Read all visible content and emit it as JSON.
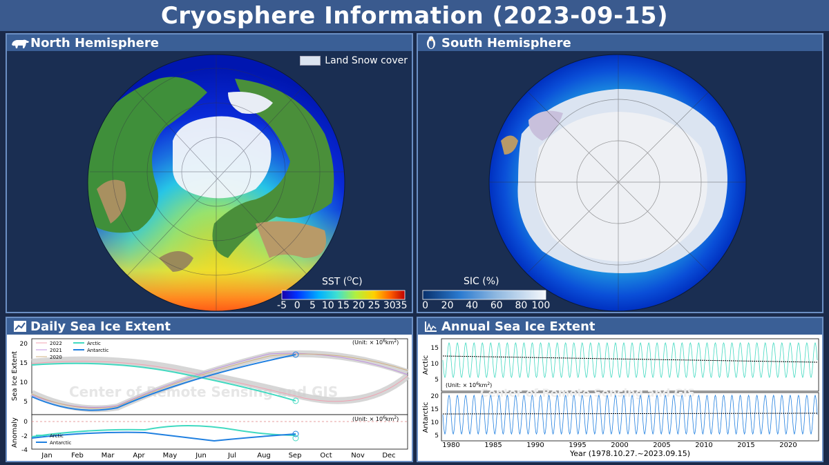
{
  "title": "Cryosphere Information (2023-09-15)",
  "panels": {
    "north": {
      "title": "North Hemisphere",
      "icon": "polar-bear-icon",
      "legend": "Land Snow cover",
      "cbar_label": "SST (",
      "cbar_label_sup": "O",
      "cbar_label_end": "C)",
      "cbar_ticks": [
        "-5",
        "0",
        "5",
        "10",
        "15",
        "20",
        "25",
        "30",
        "35"
      ]
    },
    "south": {
      "title": "South Hemisphere",
      "icon": "penguin-icon",
      "cbar_label": "SIC (%)",
      "cbar_ticks": [
        "0",
        "20",
        "40",
        "60",
        "80",
        "100"
      ]
    },
    "daily": {
      "title": "Daily Sea Ice Extent",
      "icon": "line-chart-icon",
      "watermark": "Center of Remote Sensing and GIS",
      "unit_text": "(Unit: × 10",
      "unit_sup": "6",
      "unit_end": "km",
      "unit_sup2": "2",
      "unit_close": ")",
      "ylabel_top": "Sea Ice Extent",
      "ylabel_bottom": "Anomaly",
      "legend_years": [
        "2022",
        "2021",
        "2020"
      ],
      "legend_series": [
        "Arctic",
        "Antarctic"
      ],
      "anomaly_legend": [
        "Arctic",
        "Antarctic"
      ],
      "yticks_top": [
        "20",
        "15",
        "10",
        "5"
      ],
      "yticks_bottom": [
        "0",
        "-2",
        "-4"
      ],
      "months": [
        "Jan",
        "Feb",
        "Mar",
        "Apr",
        "May",
        "Jun",
        "Jul",
        "Aug",
        "Sep",
        "Oct",
        "Nov",
        "Dec"
      ]
    },
    "annual": {
      "title": "Annual Sea Ice Extent",
      "icon": "annual-chart-icon",
      "watermark": "Center of Remote Sensing and GIS",
      "unit_text": "(Unit: × 10",
      "unit_sup": "6",
      "unit_end": "km",
      "unit_sup2": "2",
      "unit_close": ")",
      "ylabel_top": "Arctic",
      "ylabel_bottom": "Antarctic",
      "yticks_top": [
        "15",
        "10",
        "5"
      ],
      "yticks_bottom": [
        "20",
        "15",
        "10",
        "5"
      ],
      "years": [
        "1980",
        "1985",
        "1990",
        "1995",
        "2000",
        "2005",
        "2010",
        "2015",
        "2020"
      ],
      "xlabel": "Year (1978.10.27.~2023.09.15)"
    }
  },
  "colors": {
    "title_bg": "#3a5a8e",
    "panel_head": "#3a5f96",
    "panel_bg": "#1a2e52",
    "arctic": "#40d9c0",
    "antarctic": "#1f7fe0"
  }
}
